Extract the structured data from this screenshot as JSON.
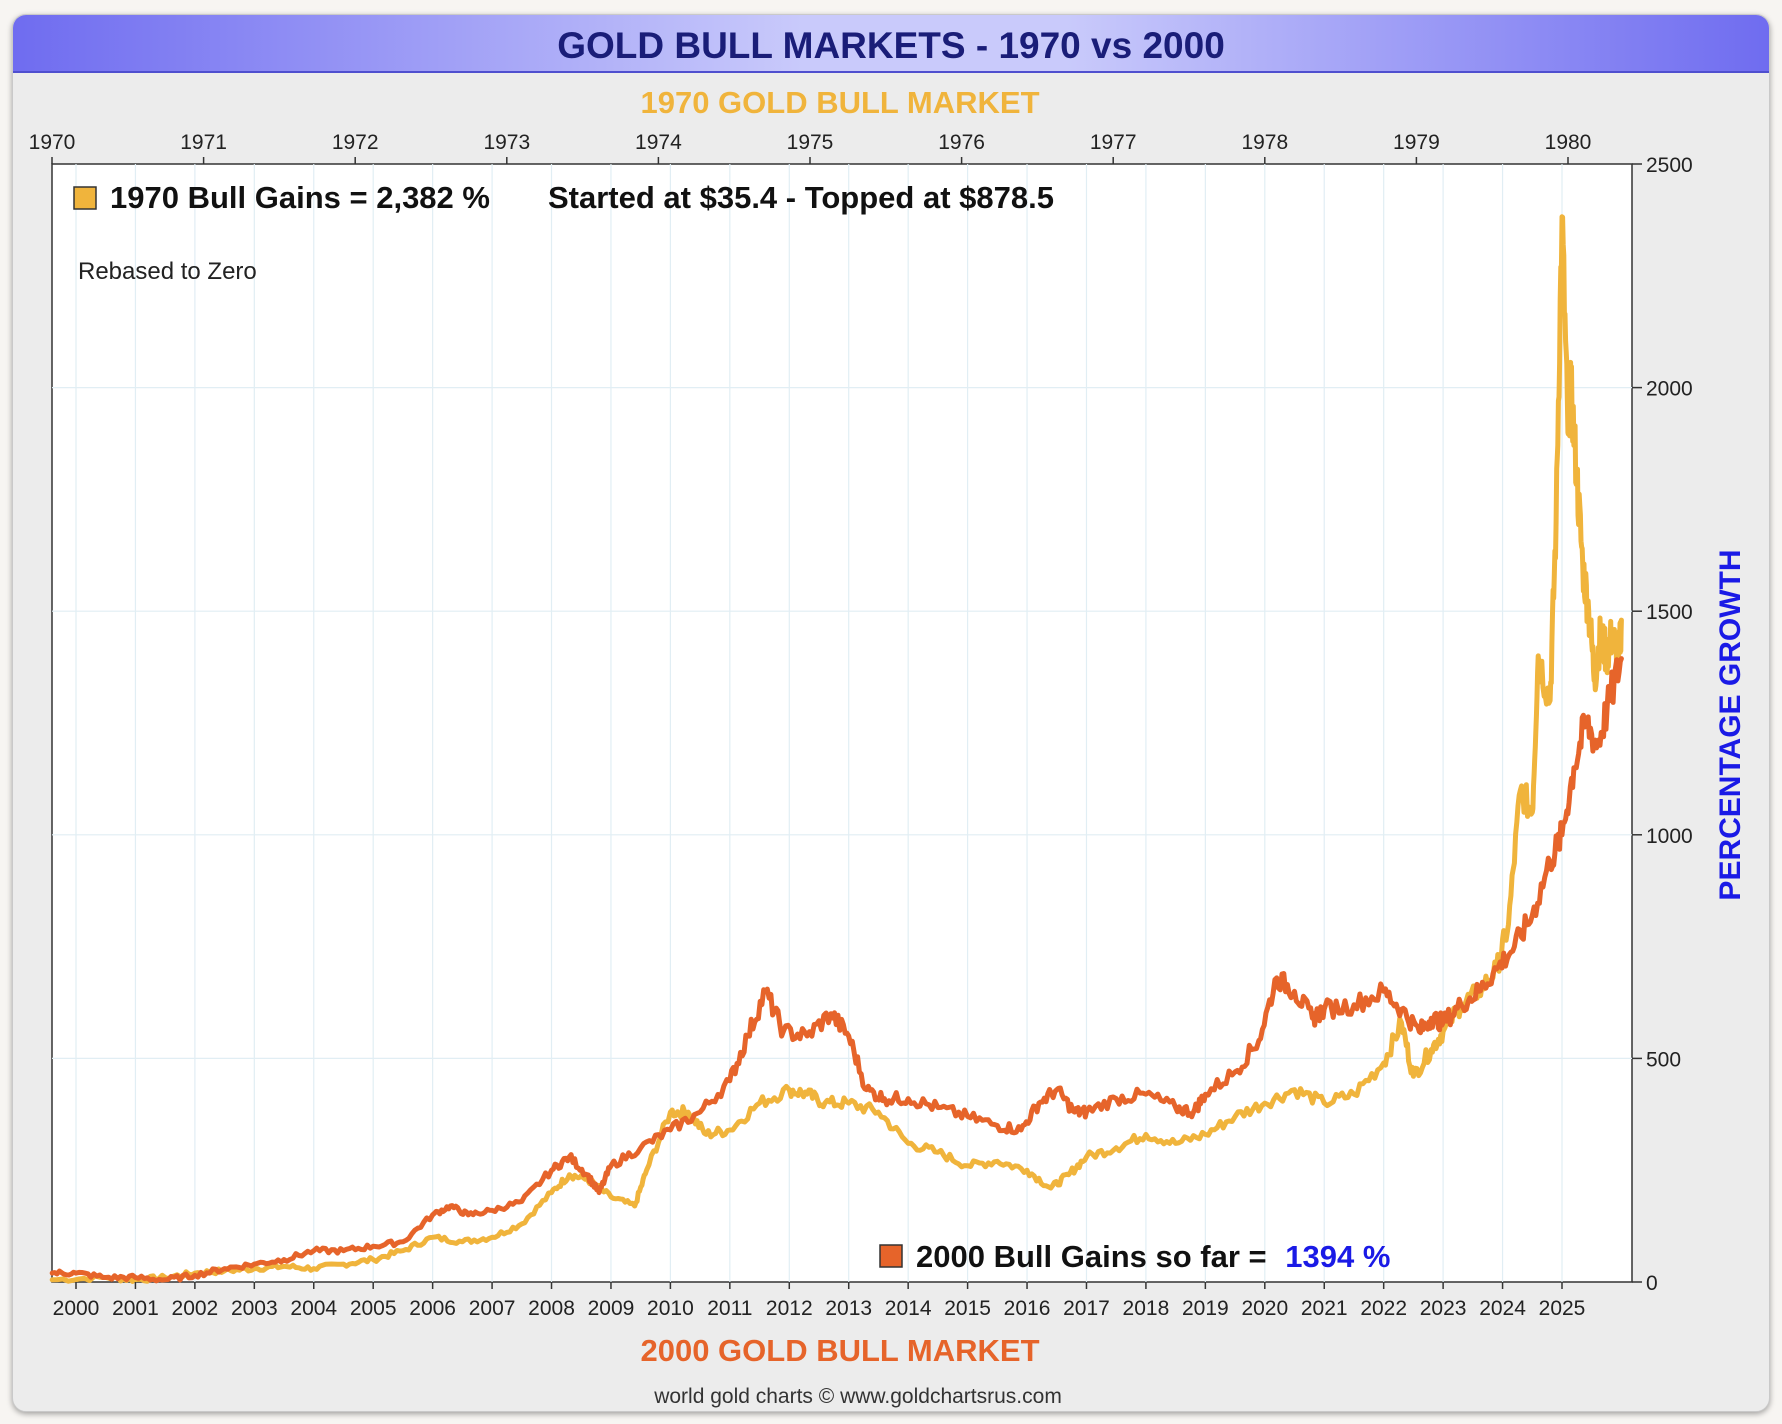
{
  "title": "GOLD BULL MARKETS - 1970 vs 2000",
  "colors": {
    "gold_1970": "#f0b43c",
    "orange_2000": "#e6642a",
    "title_text": "#1a1d78",
    "blue_accent": "#1a1ae6",
    "grid": "#e1eef4"
  },
  "chart_data": {
    "type": "line",
    "title": "GOLD BULL MARKETS - 1970 vs 2000",
    "top_axis_label": "1970 GOLD BULL MARKET",
    "bottom_axis_label": "2000 GOLD BULL MARKET",
    "ylabel": "PERCENTAGE GROWTH",
    "ylim": [
      0,
      2500
    ],
    "yticks": [
      "0",
      "500",
      "1000",
      "1500",
      "2000",
      "2500"
    ],
    "top_ticks": [
      "1970",
      "1971",
      "1972",
      "1973",
      "1974",
      "1975",
      "1976",
      "1977",
      "1978",
      "1979",
      "1980"
    ],
    "bottom_ticks": [
      "2000",
      "2001",
      "2002",
      "2003",
      "2004",
      "2005",
      "2006",
      "2007",
      "2008",
      "2009",
      "2010",
      "2011",
      "2012",
      "2013",
      "2014",
      "2015",
      "2016",
      "2017",
      "2018",
      "2019",
      "2020",
      "2021",
      "2022",
      "2023",
      "2024",
      "2025"
    ],
    "grid": true,
    "legend_1970_text": "1970 Bull Gains = 2,382 %",
    "legend_1970_detail": "Started at $35.4 - Topped at $878.5",
    "note": "Rebased to Zero",
    "legend_2000_text": "2000 Bull Gains so far = ",
    "legend_2000_value": "1394 %",
    "credit": "world gold charts © www.goldchartsrus.com",
    "series": [
      {
        "name": "1970 Bull",
        "x_years_2000": [
          1999.6,
          2000.5,
          2001.0,
          2001.5,
          2002.0,
          2002.5,
          2003.0,
          2003.5,
          2004.0,
          2004.5,
          2005.0,
          2005.5,
          2006.0,
          2006.5,
          2007.0,
          2007.5,
          2008.0,
          2008.3,
          2008.6,
          2009.0,
          2009.4,
          2009.6,
          2010.0,
          2010.3,
          2010.6,
          2011.0,
          2011.5,
          2012.0,
          2012.3,
          2012.6,
          2013.0,
          2013.5,
          2014.0,
          2014.5,
          2015.0,
          2015.5,
          2016.0,
          2016.4,
          2016.7,
          2017.0,
          2017.5,
          2018.0,
          2018.5,
          2019.0,
          2019.5,
          2020.0,
          2020.5,
          2021.0,
          2021.5,
          2022.0,
          2022.3,
          2022.5,
          2022.8,
          2023.0,
          2023.3,
          2023.6,
          2023.9,
          2024.1,
          2024.3,
          2024.5,
          2024.6,
          2024.8,
          2024.9,
          2025.0,
          2025.1,
          2025.15,
          2025.25,
          2025.35,
          2025.45,
          2025.55,
          2025.65,
          2025.75,
          2025.85,
          2025.95,
          2026.0
        ],
        "values": [
          5,
          10,
          5,
          10,
          20,
          25,
          30,
          35,
          30,
          40,
          50,
          70,
          100,
          90,
          100,
          130,
          200,
          240,
          230,
          190,
          170,
          250,
          380,
          380,
          330,
          340,
          400,
          430,
          420,
          400,
          400,
          380,
          310,
          290,
          260,
          270,
          250,
          210,
          240,
          280,
          300,
          330,
          310,
          330,
          370,
          400,
          430,
          400,
          420,
          490,
          580,
          460,
          520,
          560,
          620,
          650,
          700,
          800,
          1100,
          1050,
          1400,
          1300,
          1700,
          2382,
          1900,
          2000,
          1800,
          1600,
          1500,
          1350,
          1450,
          1400,
          1450,
          1380,
          1480
        ]
      },
      {
        "name": "2000 Bull",
        "x_years_2000": [
          1999.6,
          2000.0,
          2000.5,
          2001.0,
          2001.5,
          2002.0,
          2002.5,
          2003.0,
          2003.5,
          2004.0,
          2004.5,
          2005.0,
          2005.5,
          2006.0,
          2006.3,
          2006.6,
          2007.0,
          2007.5,
          2008.0,
          2008.3,
          2008.6,
          2008.8,
          2009.0,
          2009.5,
          2010.0,
          2010.5,
          2011.0,
          2011.3,
          2011.6,
          2011.9,
          2012.3,
          2012.7,
          2013.0,
          2013.3,
          2013.6,
          2014.0,
          2014.5,
          2015.0,
          2015.5,
          2015.9,
          2016.2,
          2016.5,
          2016.8,
          2017.0,
          2017.5,
          2018.0,
          2018.5,
          2018.8,
          2019.0,
          2019.5,
          2019.9,
          2020.2,
          2020.5,
          2020.8,
          2021.0,
          2021.5,
          2022.0,
          2022.3,
          2022.6,
          2022.8,
          2023.0,
          2023.3,
          2023.6,
          2023.9,
          2024.2,
          2024.5,
          2024.8,
          2025.0,
          2025.2,
          2025.4,
          2025.6,
          2025.8,
          2026.0
        ],
        "values": [
          20,
          20,
          10,
          10,
          5,
          15,
          30,
          40,
          50,
          70,
          70,
          80,
          90,
          150,
          170,
          150,
          160,
          180,
          250,
          280,
          240,
          200,
          260,
          300,
          340,
          380,
          450,
          550,
          650,
          560,
          550,
          600,
          550,
          430,
          410,
          410,
          390,
          370,
          350,
          340,
          400,
          430,
          380,
          380,
          410,
          420,
          390,
          380,
          420,
          470,
          540,
          680,
          650,
          590,
          610,
          620,
          650,
          610,
          560,
          590,
          580,
          620,
          650,
          700,
          750,
          820,
          940,
          1000,
          1150,
          1250,
          1200,
          1300,
          1394
        ]
      }
    ]
  }
}
